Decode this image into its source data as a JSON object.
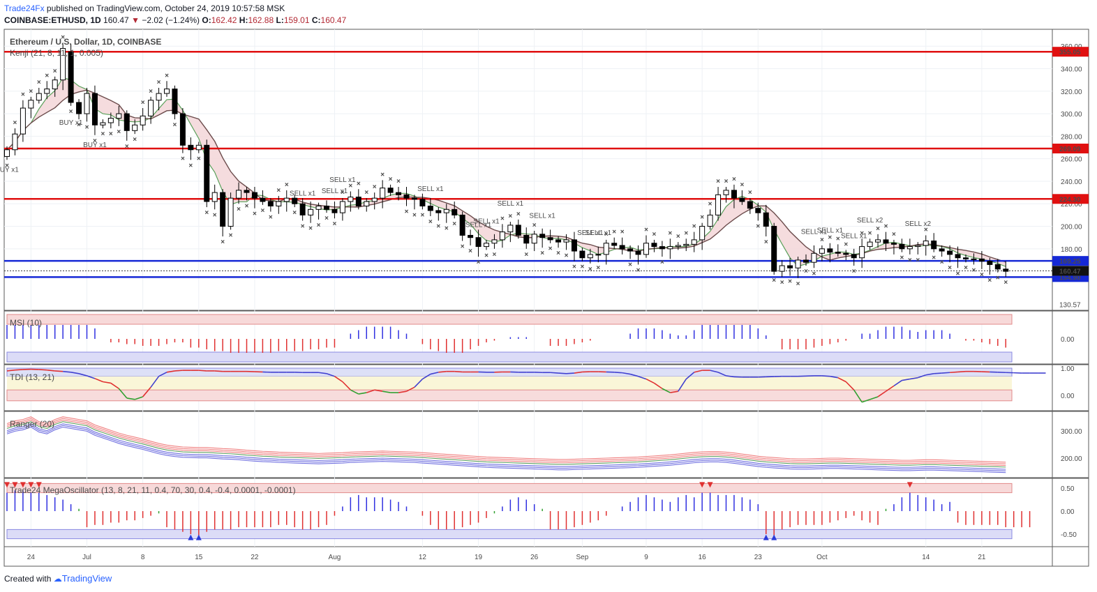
{
  "header": {
    "brand": "Trade24Fx",
    "published": " published on TradingView.com, October 24, 2019 10:57:58 MSK",
    "symbol": "COINBASE:ETHUSD, 1D",
    "last": "160.47",
    "change": "−2.02 (−1.24%)",
    "open_label": "O:",
    "open": "162.42",
    "high_label": "H:",
    "high": "162.88",
    "low_label": "L:",
    "low": "159.01",
    "close_label": "C:",
    "close": "160.47"
  },
  "footer": {
    "created_with": "Created with",
    "brand": "TradingView"
  },
  "panes": {
    "main": {
      "title": "Ethereum / U.S. Dollar, 1D, COINBASE",
      "indicator": "Kenji (21, 8, 11, 1, 0.005)"
    },
    "msi": {
      "title": "MSI (10)"
    },
    "tdi": {
      "title": "TDI (13, 21)"
    },
    "ranger": {
      "title": "Ranger (20)"
    },
    "mega": {
      "title": "Trade24 MegaOscillator (13, 8, 21, 11, 0.4, 70, 30, 0.4, -0.4, 0.0001, -0.0001)"
    }
  },
  "chart_data": [
    {
      "type": "candlestick",
      "pane": "main",
      "title": "Ethereum / U.S. Dollar, 1D, COINBASE",
      "ylim": [
        126,
        375
      ],
      "y_ticks": [
        180,
        200,
        220,
        240,
        260,
        280,
        300,
        320,
        340,
        360
      ],
      "y_tick_labels": [
        "180.00",
        "200.00",
        "220.00",
        "240.00",
        "260.00",
        "280.00",
        "300.00",
        "320.00",
        "340.00",
        "360.00"
      ],
      "x_tick_labels": [
        {
          "label": "24",
          "day": 3
        },
        {
          "label": "Jul",
          "day": 10
        },
        {
          "label": "8",
          "day": 17
        },
        {
          "label": "15",
          "day": 24
        },
        {
          "label": "22",
          "day": 31
        },
        {
          "label": "Aug",
          "day": 41
        },
        {
          "label": "12",
          "day": 52
        },
        {
          "label": "19",
          "day": 59
        },
        {
          "label": "26",
          "day": 66
        },
        {
          "label": "Sep",
          "day": 72
        },
        {
          "label": "9",
          "day": 80
        },
        {
          "label": "16",
          "day": 87
        },
        {
          "label": "23",
          "day": 94
        },
        {
          "label": "Oct",
          "day": 102
        },
        {
          "label": "14",
          "day": 115
        },
        {
          "label": "21",
          "day": 122
        }
      ],
      "close": [
        268,
        282,
        305,
        312,
        318,
        322,
        330,
        358,
        310,
        300,
        318,
        290,
        292,
        296,
        300,
        285,
        290,
        298,
        312,
        318,
        322,
        300,
        272,
        268,
        272,
        222,
        230,
        200,
        225,
        232,
        230,
        225,
        222,
        218,
        222,
        225,
        220,
        210,
        215,
        218,
        215,
        212,
        222,
        226,
        218,
        222,
        225,
        234,
        230,
        228,
        225,
        224,
        218,
        214,
        212,
        215,
        210,
        192,
        190,
        182,
        185,
        188,
        195,
        201,
        192,
        185,
        193,
        190,
        188,
        186,
        188,
        178,
        172,
        175,
        175,
        185,
        183,
        180,
        178,
        175,
        185,
        182,
        180,
        182,
        183,
        184,
        188,
        200,
        210,
        228,
        232,
        225,
        222,
        216,
        212,
        200,
        160,
        165,
        163,
        170,
        168,
        176,
        180,
        177,
        176,
        175,
        172,
        182,
        186,
        188,
        185,
        184,
        180,
        182,
        183,
        187,
        180,
        178,
        175,
        172,
        171,
        171,
        169,
        166,
        162,
        160
      ],
      "open": [
        262,
        268,
        282,
        305,
        312,
        318,
        322,
        330,
        355,
        310,
        300,
        318,
        290,
        292,
        296,
        300,
        285,
        290,
        298,
        312,
        318,
        322,
        300,
        272,
        268,
        272,
        222,
        230,
        200,
        225,
        232,
        230,
        225,
        222,
        218,
        222,
        225,
        220,
        210,
        215,
        218,
        215,
        212,
        222,
        226,
        218,
        222,
        225,
        234,
        230,
        228,
        225,
        224,
        218,
        214,
        212,
        215,
        210,
        192,
        190,
        182,
        185,
        188,
        195,
        201,
        192,
        185,
        193,
        190,
        188,
        186,
        188,
        178,
        172,
        175,
        175,
        185,
        183,
        180,
        178,
        175,
        185,
        182,
        180,
        182,
        183,
        184,
        188,
        200,
        210,
        228,
        232,
        225,
        222,
        216,
        212,
        200,
        160,
        165,
        163,
        170,
        168,
        176,
        180,
        177,
        176,
        175,
        172,
        182,
        186,
        188,
        185,
        184,
        180,
        182,
        183,
        187,
        180,
        178,
        175,
        172,
        171,
        171,
        169,
        166,
        162
      ],
      "support_resistance": [
        355.05,
        269.09,
        224.3,
        169.25,
        154.9
      ],
      "level_labels": [
        "355.05",
        "269.09",
        "224.30",
        "169.25",
        "154.90"
      ],
      "last_price_label": "160.47",
      "partial_bottom_label": "130.57",
      "signals": [
        {
          "label": "BUY x1",
          "day": 0
        },
        {
          "label": "BUY x1",
          "day": 8
        },
        {
          "label": "BUY x1",
          "day": 11
        },
        {
          "label": "SELL x1",
          "day": 37
        },
        {
          "label": "SELL x1",
          "day": 41
        },
        {
          "label": "SELL x1",
          "day": 42
        },
        {
          "label": "SELL x1",
          "day": 53
        },
        {
          "label": "SELL x1",
          "day": 59
        },
        {
          "label": "SELL x1",
          "day": 60
        },
        {
          "label": "SELL x1",
          "day": 63
        },
        {
          "label": "SELL x1",
          "day": 67
        },
        {
          "label": "SELL x1",
          "day": 73
        },
        {
          "label": "SELL x1",
          "day": 74
        },
        {
          "label": "SELL x1",
          "day": 101
        },
        {
          "label": "SELL x1",
          "day": 103
        },
        {
          "label": "SELL x1",
          "day": 106
        },
        {
          "label": "SELL x2",
          "day": 108
        },
        {
          "label": "SELL x2",
          "day": 114
        }
      ]
    },
    {
      "type": "histogram",
      "pane": "msi",
      "title": "MSI (10)",
      "y_tick_labels": [
        "0.00"
      ],
      "values": [
        0.8,
        0.8,
        0.8,
        0.8,
        0.8,
        0.8,
        0.8,
        0.8,
        0.8,
        0.8,
        0.8,
        0.6,
        0,
        -0.2,
        -0.2,
        -0.3,
        -0.3,
        -0.4,
        -0.4,
        -0.4,
        -0.3,
        -0.2,
        -0.2,
        -0.5,
        -0.5,
        -0.6,
        -0.7,
        -0.7,
        -0.8,
        -0.8,
        -0.8,
        -0.8,
        -0.8,
        -0.8,
        -0.7,
        -0.7,
        -0.7,
        -0.7,
        -0.6,
        -0.6,
        -0.5,
        -0.5,
        0,
        0.3,
        0.5,
        0.7,
        0.7,
        0.7,
        0.7,
        0.5,
        0.3,
        0,
        -0.3,
        -0.6,
        -0.7,
        -0.8,
        -0.8,
        -0.8,
        -0.6,
        -0.4,
        -0.2,
        -0.1,
        0,
        0.1,
        0.1,
        0.1,
        0,
        0,
        -0.4,
        -0.4,
        -0.4,
        -0.3,
        -0.2,
        -0.1,
        0,
        0,
        0,
        0,
        0.3,
        0.6,
        0.6,
        0.6,
        0.5,
        0.3,
        0.2,
        0.2,
        0.5,
        0.8,
        0.8,
        0.8,
        0.8,
        0.8,
        0.8,
        0.8,
        0.6,
        0.2,
        0,
        -0.6,
        -0.6,
        -0.6,
        -0.6,
        -0.5,
        -0.4,
        -0.3,
        -0.2,
        -0.1,
        0,
        0.3,
        0.3,
        0.5,
        0.7,
        0.7,
        0.7,
        0.5,
        0.4,
        0.5,
        0.5,
        0.5,
        0.3,
        0,
        -0.1,
        -0.1,
        -0.2,
        -0.3,
        -0.4,
        -0.5
      ]
    },
    {
      "type": "line",
      "pane": "tdi",
      "title": "TDI (13, 21)",
      "y_tick_labels": [
        "1.00",
        "0.00"
      ],
      "values": [
        0.9,
        0.93,
        0.95,
        0.96,
        0.95,
        0.93,
        0.9,
        0.88,
        0.85,
        0.8,
        0.72,
        0.62,
        0.5,
        0.45,
        0.25,
        -0.1,
        -0.15,
        -0.05,
        0.3,
        0.7,
        0.85,
        0.9,
        0.92,
        0.92,
        0.92,
        0.9,
        0.9,
        0.88,
        0.88,
        0.88,
        0.88,
        0.87,
        0.86,
        0.85,
        0.85,
        0.85,
        0.85,
        0.84,
        0.84,
        0.84,
        0.8,
        0.7,
        0.5,
        0.2,
        0.05,
        0.1,
        0.2,
        0.15,
        0.1,
        0.1,
        0.15,
        0.3,
        0.6,
        0.78,
        0.85,
        0.88,
        0.88,
        0.86,
        0.86,
        0.86,
        0.85,
        0.85,
        0.86,
        0.86,
        0.85,
        0.85,
        0.85,
        0.84,
        0.84,
        0.82,
        0.8,
        0.82,
        0.86,
        0.87,
        0.87,
        0.86,
        0.85,
        0.83,
        0.78,
        0.7,
        0.6,
        0.45,
        0.25,
        0.1,
        0.15,
        0.6,
        0.85,
        0.92,
        0.92,
        0.85,
        0.72,
        0.68,
        0.67,
        0.67,
        0.67,
        0.68,
        0.69,
        0.7,
        0.7,
        0.7,
        0.71,
        0.72,
        0.72,
        0.7,
        0.65,
        0.5,
        0.2,
        -0.25,
        -0.15,
        -0.05,
        0.15,
        0.35,
        0.55,
        0.6,
        0.65,
        0.75,
        0.8,
        0.82,
        0.84,
        0.86,
        0.88,
        0.88,
        0.87,
        0.86,
        0.85,
        0.84,
        0.83,
        0.82,
        0.82,
        0.82,
        0.82
      ]
    },
    {
      "type": "line",
      "pane": "ranger",
      "title": "Ranger (20)",
      "y_tick_labels": [
        "300.00",
        "200.00"
      ],
      "values": [
        305,
        315,
        320,
        330,
        312,
        305,
        320,
        330,
        325,
        320,
        315,
        300,
        290,
        280,
        270,
        262,
        255,
        248,
        240,
        232,
        226,
        222,
        219,
        218,
        217,
        217,
        215,
        213,
        212,
        210,
        207,
        205,
        203,
        202,
        200,
        199,
        198,
        197,
        196,
        195,
        196,
        197,
        198,
        200,
        201,
        202,
        203,
        204,
        203,
        202,
        201,
        200,
        198,
        196,
        194,
        192,
        190,
        188,
        186,
        184,
        182,
        181,
        180,
        179,
        178,
        177,
        176,
        175,
        174,
        173,
        173,
        174,
        175,
        176,
        177,
        178,
        179,
        180,
        181,
        182,
        184,
        186,
        188,
        190,
        193,
        196,
        199,
        201,
        202,
        202,
        200,
        197,
        193,
        189,
        185,
        182,
        180,
        178,
        176,
        175,
        175,
        176,
        177,
        178,
        178,
        177,
        176,
        175,
        174,
        173,
        172,
        171,
        170,
        170,
        171,
        172,
        172,
        171,
        170,
        169,
        168,
        167,
        166,
        165,
        164,
        163
      ]
    },
    {
      "type": "histogram",
      "pane": "mega",
      "title": "Trade24 MegaOscillator (13, 8, 21, 11, 0.4, 70, 30, 0.4, -0.4, 0.0001, -0.0001)",
      "y_tick_labels": [
        "0.50",
        "0.00",
        "-0.50"
      ],
      "values": [
        0.4,
        0.45,
        0.45,
        0.4,
        0.4,
        0.35,
        0.3,
        0.25,
        0.15,
        0.05,
        -0.35,
        -0.3,
        -0.3,
        -0.25,
        -0.25,
        -0.2,
        -0.2,
        -0.15,
        -0.1,
        -0.05,
        -0.35,
        -0.4,
        -0.45,
        -0.5,
        -0.6,
        -0.45,
        -0.4,
        -0.4,
        -0.4,
        -0.35,
        -0.35,
        -0.35,
        -0.35,
        -0.35,
        -0.3,
        -0.3,
        -0.35,
        -0.4,
        -0.4,
        -0.35,
        -0.3,
        -0.1,
        0.1,
        0.3,
        0.35,
        0.3,
        0.3,
        0.3,
        0.25,
        0.2,
        0.1,
        0,
        -0.1,
        -0.3,
        -0.4,
        -0.4,
        -0.4,
        -0.35,
        -0.3,
        -0.25,
        -0.15,
        -0.05,
        0.1,
        0.25,
        0.3,
        0.25,
        0.15,
        0.05,
        -0.4,
        -0.4,
        -0.4,
        -0.35,
        -0.3,
        -0.25,
        -0.2,
        -0.1,
        0,
        0.1,
        0.2,
        0.3,
        0.35,
        0.3,
        0.25,
        0.2,
        0.3,
        0.35,
        0.3,
        0.4,
        0.4,
        0.35,
        0.35,
        0.35,
        0.3,
        0.25,
        0.15,
        -0.5,
        -0.6,
        -0.4,
        -0.35,
        -0.3,
        -0.3,
        -0.3,
        -0.3,
        -0.25,
        -0.2,
        -0.15,
        -0.1,
        -0.2,
        -0.25,
        -0.3,
        0.05,
        0.15,
        0.3,
        0.4,
        0.35,
        0.3,
        0.25,
        0.15,
        0.2,
        -0.25,
        -0.3,
        -0.3,
        -0.3,
        -0.3,
        -0.3,
        -0.35,
        -0.35,
        -0.35,
        -0.35
      ]
    }
  ]
}
